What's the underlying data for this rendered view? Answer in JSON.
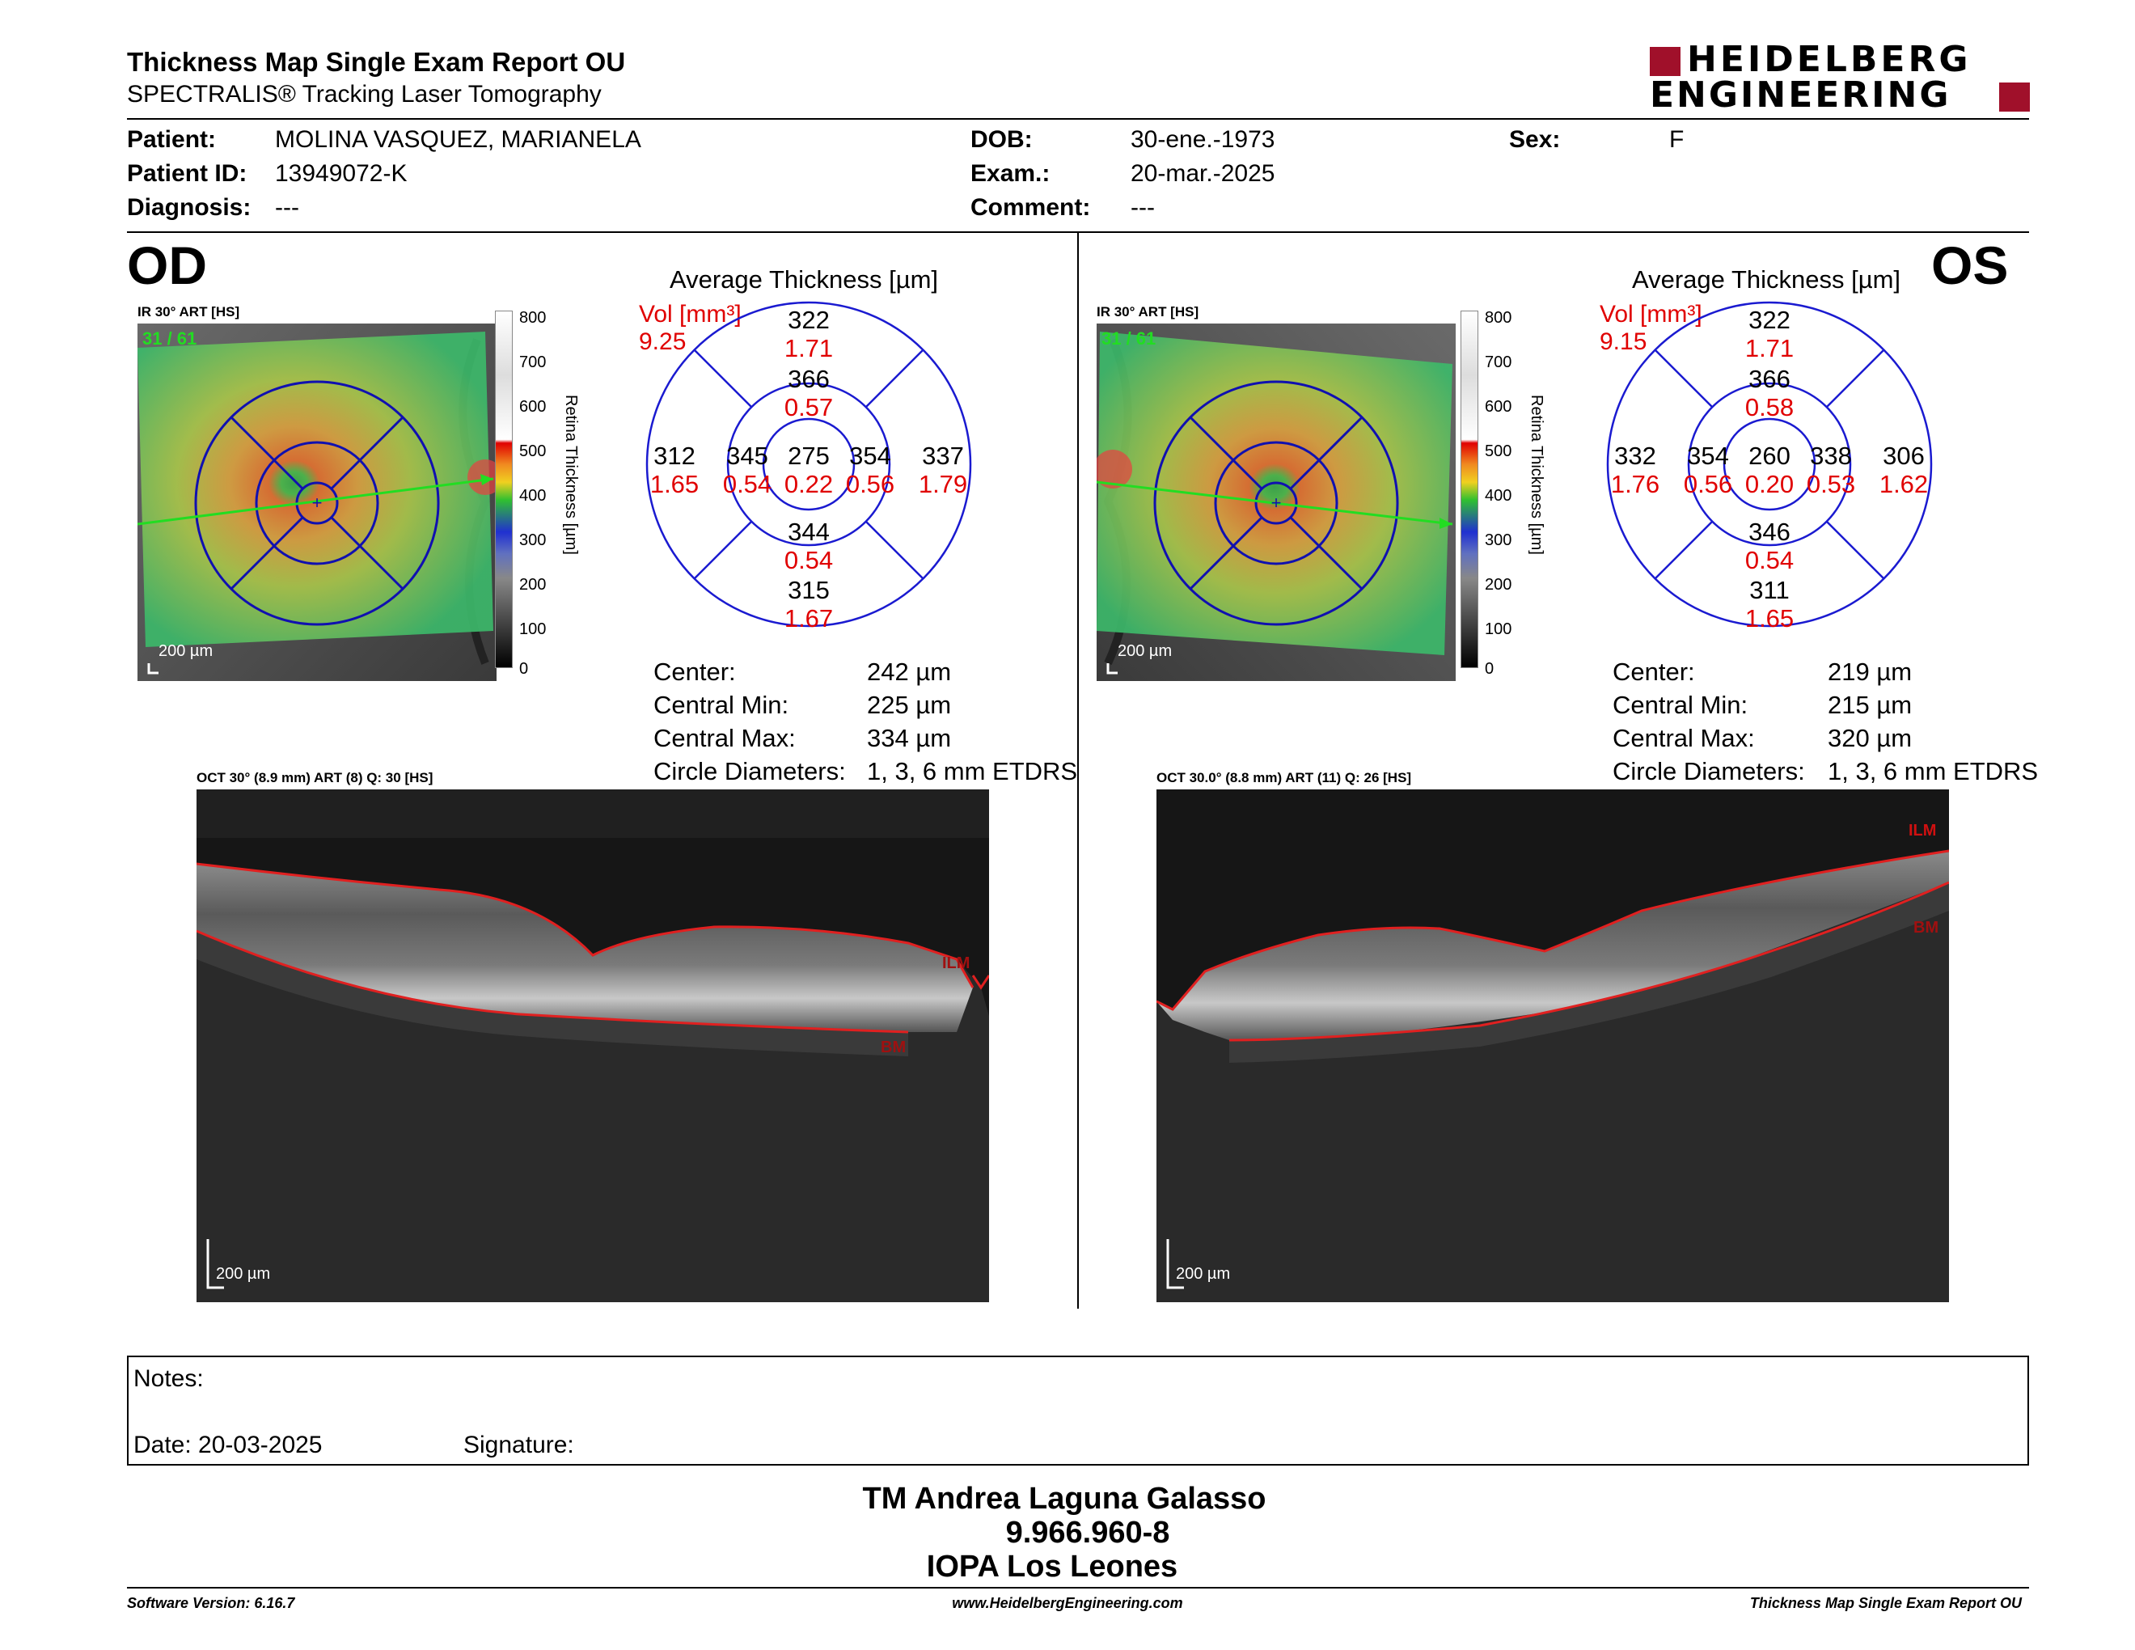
{
  "report": {
    "title": "Thickness Map Single Exam Report OU",
    "subtitle": "SPECTRALIS® Tracking Laser Tomography",
    "logo_line1": "HEIDELBERG",
    "logo_line2": "ENGINEERING"
  },
  "patient": {
    "patient_label": "Patient:",
    "patient_value": "MOLINA VASQUEZ, MARIANELA",
    "id_label": "Patient ID:",
    "id_value": "13949072-K",
    "diagnosis_label": "Diagnosis:",
    "diagnosis_value": "---",
    "dob_label": "DOB:",
    "dob_value": "30-ene.-1973",
    "exam_label": "Exam.:",
    "exam_value": "20-mar.-2025",
    "comment_label": "Comment:",
    "comment_value": "---",
    "sex_label": "Sex:",
    "sex_value": "F"
  },
  "od": {
    "eye": "OD",
    "ir_title": "IR 30° ART [HS]",
    "ir_frame": "31 / 61",
    "ir_scale": "200 µm",
    "avg_title": "Average Thickness [µm]",
    "vol_label": "Vol [mm³]",
    "vol_value": "9.25",
    "etdrs": {
      "center_t": "275",
      "center_v": "0.22",
      "inner_sup_t": "366",
      "inner_sup_v": "0.57",
      "inner_inf_t": "344",
      "inner_inf_v": "0.54",
      "inner_left_t": "345",
      "inner_left_v": "0.54",
      "inner_right_t": "354",
      "inner_right_v": "0.56",
      "outer_sup_t": "322",
      "outer_sup_v": "1.71",
      "outer_inf_t": "315",
      "outer_inf_v": "1.67",
      "outer_left_t": "312",
      "outer_left_v": "1.65",
      "outer_right_t": "337",
      "outer_right_v": "1.79"
    },
    "stats": {
      "center_label": "Center:",
      "center_value": "242 µm",
      "cmin_label": "Central Min:",
      "cmin_value": "225 µm",
      "cmax_label": "Central Max:",
      "cmax_value": "334 µm",
      "circ_label": "Circle Diameters:",
      "circ_value": "1, 3, 6 mm ETDRS"
    },
    "oct_title": "OCT 30° (8.9 mm) ART (8) Q: 30 [HS]",
    "oct_scale": "200 µm",
    "ilm_label": "ILM",
    "bm_label": "BM"
  },
  "os": {
    "eye": "OS",
    "ir_title": "IR 30° ART [HS]",
    "ir_frame": "31 / 61",
    "ir_scale": "200 µm",
    "avg_title": "Average Thickness [µm]",
    "vol_label": "Vol [mm³]",
    "vol_value": "9.15",
    "etdrs": {
      "center_t": "260",
      "center_v": "0.20",
      "inner_sup_t": "366",
      "inner_sup_v": "0.58",
      "inner_inf_t": "346",
      "inner_inf_v": "0.54",
      "inner_left_t": "354",
      "inner_left_v": "0.56",
      "inner_right_t": "338",
      "inner_right_v": "0.53",
      "outer_sup_t": "322",
      "outer_sup_v": "1.71",
      "outer_inf_t": "311",
      "outer_inf_v": "1.65",
      "outer_left_t": "332",
      "outer_left_v": "1.76",
      "outer_right_t": "306",
      "outer_right_v": "1.62"
    },
    "stats": {
      "center_label": "Center:",
      "center_value": "219 µm",
      "cmin_label": "Central Min:",
      "cmin_value": "215 µm",
      "cmax_label": "Central Max:",
      "cmax_value": "320 µm",
      "circ_label": "Circle Diameters:",
      "circ_value": "1, 3, 6 mm ETDRS"
    },
    "oct_title": "OCT 30.0° (8.8 mm) ART (11) Q: 26 [HS]",
    "oct_scale": "200 µm",
    "ilm_label": "ILM",
    "bm_label": "BM"
  },
  "colorbar": {
    "ticks": [
      "800",
      "700",
      "600",
      "500",
      "400",
      "300",
      "200",
      "100",
      "0"
    ],
    "axis_label": "Retina Thickness [µm]"
  },
  "notes": {
    "notes_label": "Notes:",
    "date_label": "Date: 20-03-2025",
    "signature_label": "Signature:"
  },
  "signoff": {
    "name": "TM Andrea Laguna Galasso",
    "rut": "9.966.960-8",
    "institution": "IOPA Los Leones"
  },
  "footer": {
    "software": "Software Version: 6.16.7",
    "website": "www.HeidelbergEngineering.com",
    "report_name": "Thickness Map Single Exam Report OU"
  },
  "colors": {
    "accent_red": "#a0102a",
    "value_red": "#e00000",
    "etdrs_blue": "#1a1ad0",
    "scan_green": "#22dd22"
  }
}
